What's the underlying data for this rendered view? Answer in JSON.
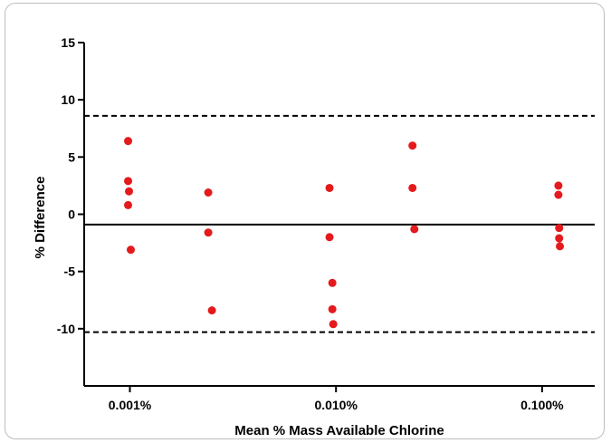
{
  "chart_data": {
    "type": "scatter",
    "title": "",
    "xlabel": "Mean % Mass Available Chlorine",
    "ylabel": "% Difference",
    "x_scale": "log",
    "xlim": [
      0.0006,
      0.18
    ],
    "ylim": [
      -15,
      15
    ],
    "y_ticks": [
      15,
      10,
      5,
      0,
      -5,
      -10
    ],
    "x_ticks": [
      {
        "value": 0.001,
        "label": "0.001%"
      },
      {
        "value": 0.01,
        "label": "0.010%"
      },
      {
        "value": 0.1,
        "label": "0.100%"
      }
    ],
    "grid": false,
    "point_color": "#e41a1c",
    "reference_lines": [
      {
        "name": "mean-bias",
        "y": -0.9,
        "style": "solid"
      },
      {
        "name": "upper-limit",
        "y": 8.6,
        "style": "dashed"
      },
      {
        "name": "lower-limit",
        "y": -10.3,
        "style": "dashed"
      }
    ],
    "points": [
      {
        "x": 0.00098,
        "y": 6.4
      },
      {
        "x": 0.00098,
        "y": 2.9
      },
      {
        "x": 0.00099,
        "y": 2.0
      },
      {
        "x": 0.00098,
        "y": 0.8
      },
      {
        "x": 0.00101,
        "y": -3.1
      },
      {
        "x": 0.0024,
        "y": 1.9
      },
      {
        "x": 0.0024,
        "y": -1.6
      },
      {
        "x": 0.0025,
        "y": -8.4
      },
      {
        "x": 0.0093,
        "y": 2.3
      },
      {
        "x": 0.0093,
        "y": -2.0
      },
      {
        "x": 0.0096,
        "y": -6.0
      },
      {
        "x": 0.0096,
        "y": -8.3
      },
      {
        "x": 0.0097,
        "y": -9.6
      },
      {
        "x": 0.0235,
        "y": 6.0
      },
      {
        "x": 0.0235,
        "y": 2.3
      },
      {
        "x": 0.024,
        "y": -1.3
      },
      {
        "x": 0.12,
        "y": 2.5
      },
      {
        "x": 0.12,
        "y": 1.7
      },
      {
        "x": 0.121,
        "y": -1.2
      },
      {
        "x": 0.121,
        "y": -2.1
      },
      {
        "x": 0.122,
        "y": -2.8
      }
    ]
  }
}
